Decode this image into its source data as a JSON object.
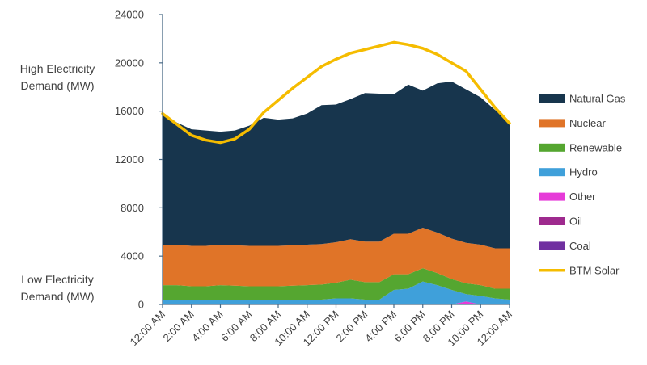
{
  "side_labels": {
    "high_line1": "High Electricity",
    "high_line2": "Demand (MW)",
    "low_line1": "Low Electricity",
    "low_line2": "Demand (MW)"
  },
  "chart_data": {
    "type": "area",
    "stacked": true,
    "ylim": [
      0,
      24000
    ],
    "yticks": [
      0,
      4000,
      8000,
      12000,
      16000,
      20000,
      24000
    ],
    "xtick_labels": [
      "12:00 AM",
      "2:00 AM",
      "4:00 AM",
      "6:00 AM",
      "8:00 AM",
      "10:00 AM",
      "12:00 PM",
      "2:00 PM",
      "4:00 PM",
      "6:00 PM",
      "8:00 PM",
      "10:00 PM",
      "12:00 AM"
    ],
    "hours": [
      0,
      1,
      2,
      3,
      4,
      5,
      6,
      7,
      8,
      9,
      10,
      11,
      12,
      13,
      14,
      15,
      16,
      17,
      18,
      19,
      20,
      21,
      22,
      23,
      24
    ],
    "legend_position": "right",
    "series": [
      {
        "name": "Coal",
        "color": "#7030A0",
        "values": [
          0,
          0,
          0,
          0,
          0,
          0,
          0,
          0,
          0,
          0,
          0,
          0,
          0,
          0,
          0,
          0,
          0,
          0,
          0,
          0,
          0,
          0,
          0,
          0,
          0
        ]
      },
      {
        "name": "Oil",
        "color": "#9E2A8E",
        "values": [
          0,
          0,
          0,
          0,
          0,
          0,
          0,
          0,
          0,
          0,
          0,
          0,
          0,
          0,
          0,
          0,
          0,
          0,
          0,
          0,
          0,
          0,
          0,
          0,
          0
        ]
      },
      {
        "name": "Other",
        "color": "#E63BD8",
        "values": [
          0,
          0,
          0,
          0,
          0,
          0,
          0,
          0,
          0,
          0,
          0,
          0,
          0,
          0,
          0,
          0,
          0,
          0,
          0,
          0,
          0,
          250,
          0,
          0,
          0
        ]
      },
      {
        "name": "Hydro",
        "color": "#3FA0DA",
        "values": [
          400,
          400,
          400,
          400,
          400,
          400,
          400,
          400,
          400,
          400,
          400,
          400,
          500,
          500,
          400,
          400,
          1200,
          1300,
          1900,
          1600,
          1200,
          600,
          700,
          500,
          400
        ]
      },
      {
        "name": "Renewable",
        "color": "#55A630",
        "values": [
          1200,
          1200,
          1100,
          1100,
          1200,
          1150,
          1100,
          1100,
          1100,
          1150,
          1200,
          1250,
          1300,
          1550,
          1450,
          1450,
          1300,
          1200,
          1100,
          1000,
          900,
          900,
          900,
          800,
          900
        ]
      },
      {
        "name": "Nuclear",
        "color": "#E07428",
        "values": [
          3350,
          3350,
          3350,
          3350,
          3350,
          3350,
          3350,
          3350,
          3350,
          3350,
          3350,
          3350,
          3350,
          3350,
          3350,
          3350,
          3350,
          3350,
          3350,
          3350,
          3350,
          3350,
          3350,
          3350,
          3350
        ]
      },
      {
        "name": "Natural Gas",
        "color": "#17354D",
        "values": [
          10900,
          10100,
          9650,
          9550,
          9350,
          9500,
          9950,
          10600,
          10450,
          10500,
          10850,
          11500,
          11400,
          11600,
          12300,
          12250,
          11550,
          12350,
          11350,
          12350,
          13000,
          12700,
          12200,
          11450,
          10350
        ]
      }
    ],
    "line_series": {
      "name": "BTM Solar",
      "color": "#F5BC00",
      "values": [
        15800,
        14900,
        14000,
        13600,
        13400,
        13700,
        14500,
        15900,
        16900,
        17900,
        18800,
        19700,
        20300,
        20800,
        21100,
        21400,
        21700,
        21500,
        21200,
        20700,
        20000,
        19300,
        17800,
        16300,
        15000
      ]
    },
    "legend_order": [
      "Natural Gas",
      "Nuclear",
      "Renewable",
      "Hydro",
      "Other",
      "Oil",
      "Coal",
      "BTM Solar"
    ]
  }
}
